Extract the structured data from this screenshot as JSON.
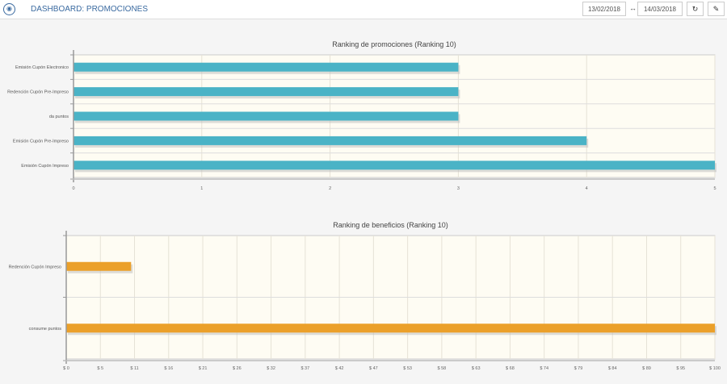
{
  "header": {
    "title": "DASHBOARD: PROMOCIONES",
    "date_from": "13/02/2018",
    "date_sep": "↔",
    "date_to": "14/03/2018",
    "refresh_icon": "↻",
    "edit_icon": "✎"
  },
  "chart_data": [
    {
      "type": "bar",
      "orientation": "horizontal",
      "title": "Ranking de promociones (Ranking 10)",
      "categories": [
        "Emisión Cupón Electronico",
        "Redención Cupón Pre-Impreso",
        "da puntos",
        "Emisión Cupón Pre-Impreso",
        "Emisión Cupón Impreso"
      ],
      "values": [
        3,
        3,
        3,
        4,
        5
      ],
      "xlim": [
        0,
        5
      ],
      "xticks": [
        "0",
        "1",
        "2",
        "3",
        "4",
        "5"
      ],
      "color": "#4ab3c6",
      "grid": true
    },
    {
      "type": "bar",
      "orientation": "horizontal",
      "title": "Ranking de beneficios (Ranking 10)",
      "categories": [
        "Redención Cupón Impreso",
        "consume puntos"
      ],
      "values": [
        10,
        100
      ],
      "xlim": [
        0,
        100
      ],
      "xticks": [
        "$ 0",
        "$ 5",
        "$ 11",
        "$ 16",
        "$ 21",
        "$ 26",
        "$ 32",
        "$ 37",
        "$ 42",
        "$ 47",
        "$ 53",
        "$ 58",
        "$ 63",
        "$ 68",
        "$ 74",
        "$ 79",
        "$ 84",
        "$ 89",
        "$ 95",
        "$ 100"
      ],
      "color": "#eba02a",
      "grid": true
    }
  ]
}
